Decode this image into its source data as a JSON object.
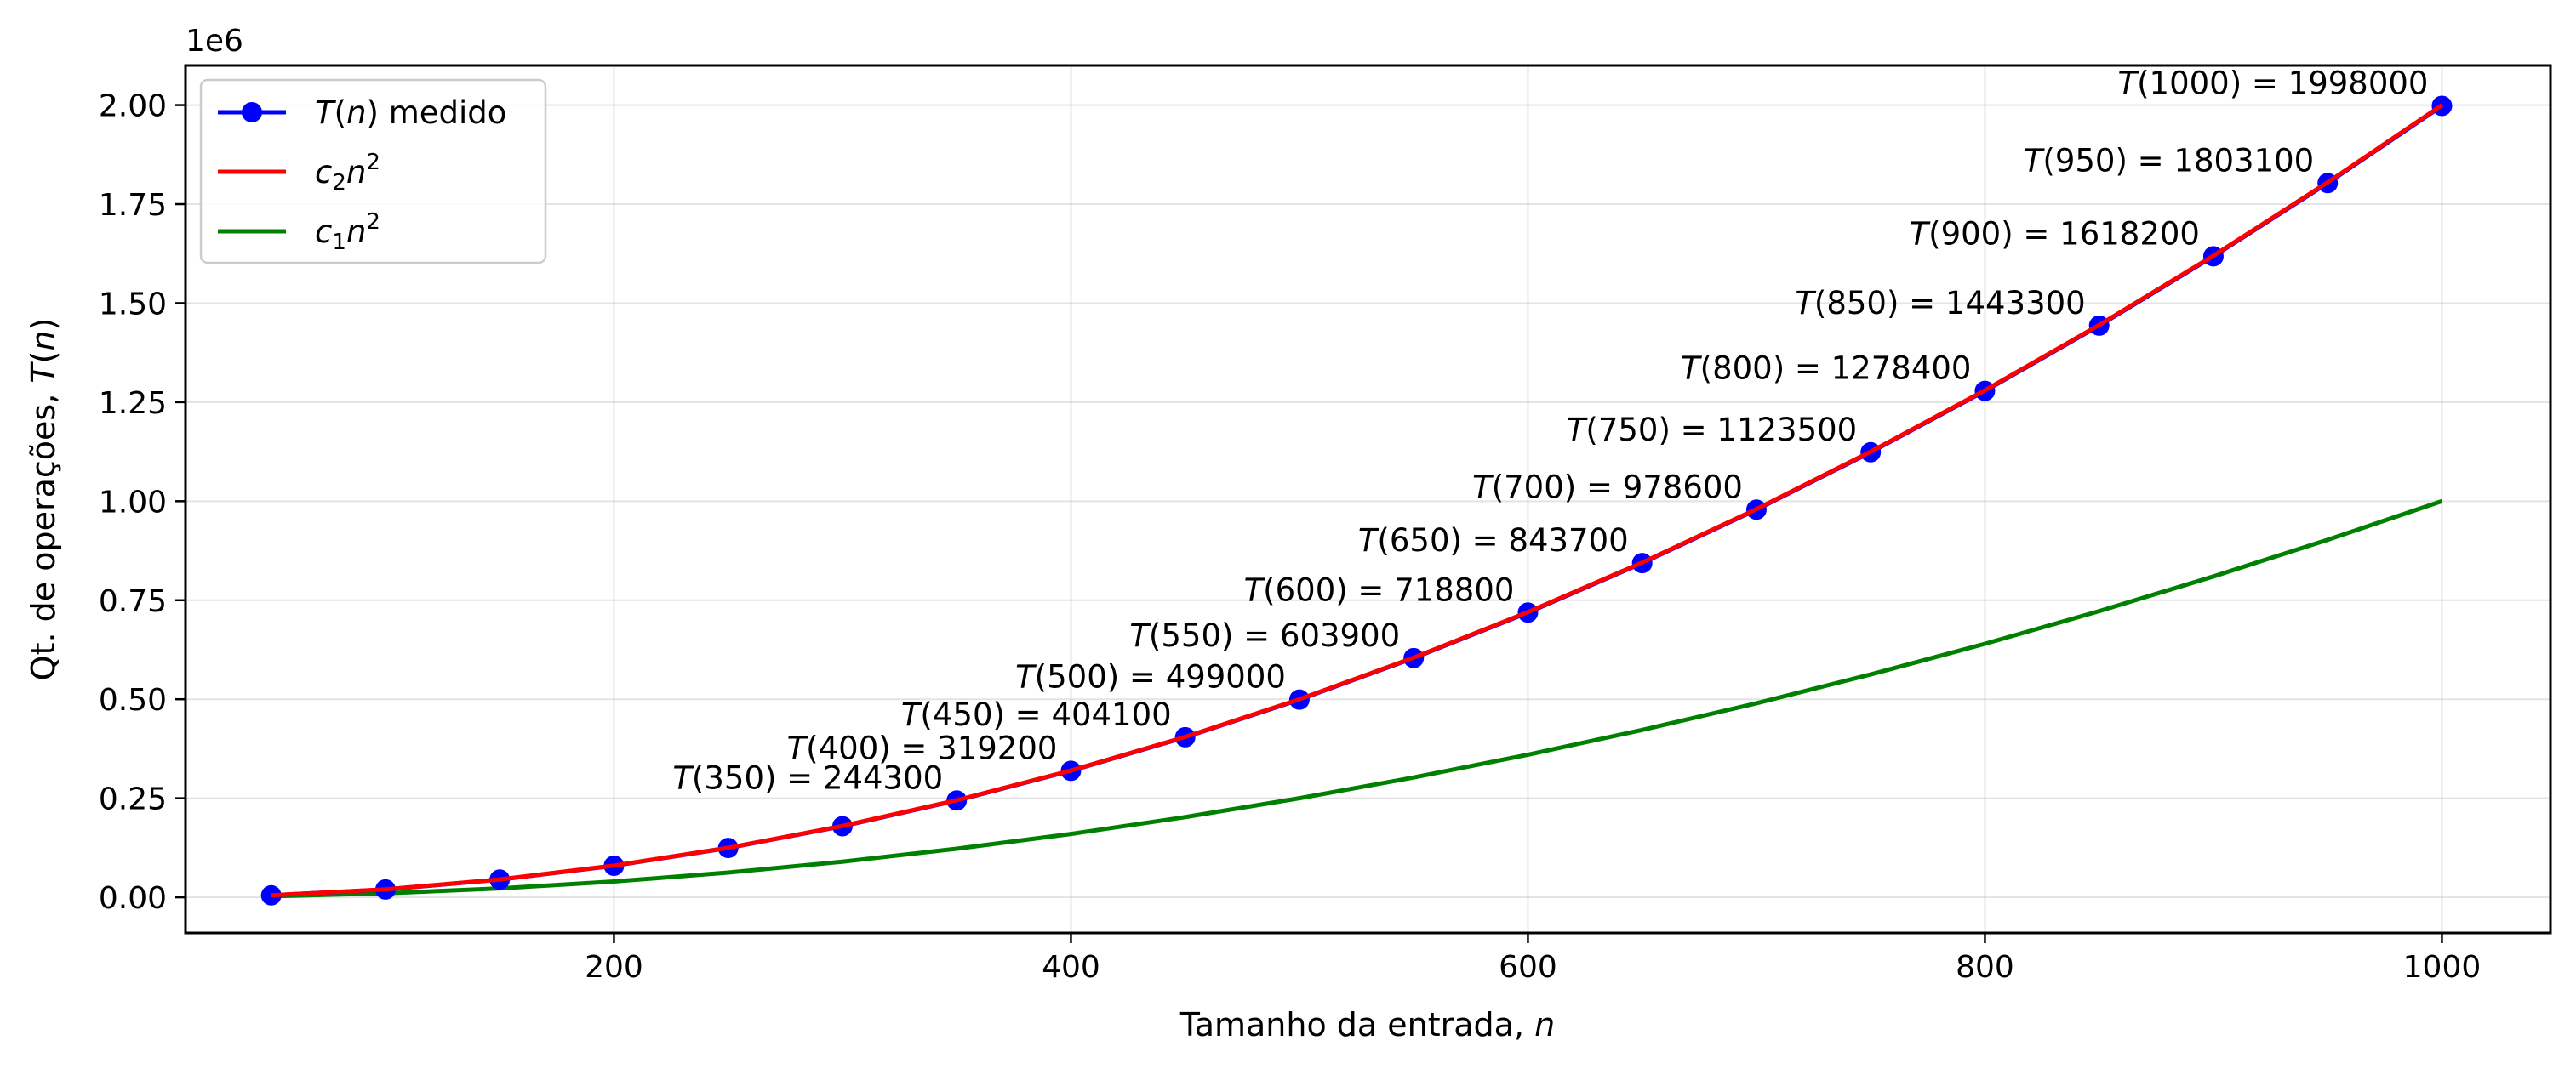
{
  "chart_data": {
    "type": "line",
    "xlabel": "Tamanho da entrada, n",
    "xlabel_parts": [
      "Tamanho da entrada, ",
      "n"
    ],
    "ylabel": "Qt. de operações, T(n)",
    "ylabel_parts": [
      "Qt. de operações, ",
      "T",
      "(",
      "n",
      ")"
    ],
    "y_offset_text": "1e6",
    "y_scale": 1000000,
    "xlim": [
      12.5,
      1047.5
    ],
    "ylim": [
      -0.09,
      2.1
    ],
    "x_ticks": [
      200,
      400,
      600,
      800,
      1000
    ],
    "x_tick_labels": [
      "200",
      "400",
      "600",
      "800",
      "1000"
    ],
    "y_ticks": [
      0,
      0.25,
      0.5,
      0.75,
      1.0,
      1.25,
      1.5,
      1.75,
      2.0
    ],
    "y_tick_labels": [
      "0.00",
      "0.25",
      "0.50",
      "0.75",
      "1.00",
      "1.25",
      "1.50",
      "1.75",
      "2.00"
    ],
    "grid": true,
    "legend_position": "top-left",
    "series": [
      {
        "name": "T(n) medido",
        "legend_parts": [
          "T",
          "(",
          "n",
          ") medido"
        ],
        "color": "#0000ff",
        "marker": "circle",
        "x": [
          50,
          100,
          150,
          200,
          250,
          300,
          350,
          400,
          450,
          500,
          550,
          600,
          650,
          700,
          750,
          800,
          850,
          900,
          950,
          1000
        ],
        "y": [
          4900,
          19800,
          44700,
          79600,
          124500,
          179400,
          244300,
          319200,
          404100,
          499000,
          603900,
          718800,
          843700,
          978600,
          1123500,
          1278400,
          1443300,
          1618200,
          1803100,
          1998000
        ]
      },
      {
        "name": "c2n2",
        "legend_parts": [
          "c",
          "2",
          "n",
          "2"
        ],
        "color": "#ff0000",
        "x": [
          50,
          100,
          150,
          200,
          250,
          300,
          350,
          400,
          450,
          500,
          550,
          600,
          650,
          700,
          750,
          800,
          850,
          900,
          950,
          1000
        ],
        "y": [
          5000,
          20000,
          45000,
          80000,
          125000,
          180000,
          245000,
          320000,
          405000,
          500000,
          605000,
          720000,
          845000,
          980000,
          1125000,
          1280000,
          1445000,
          1620000,
          1805000,
          2000000
        ]
      },
      {
        "name": "c1n2",
        "legend_parts": [
          "c",
          "1",
          "n",
          "2"
        ],
        "color": "#008000",
        "x": [
          50,
          100,
          150,
          200,
          250,
          300,
          350,
          400,
          450,
          500,
          550,
          600,
          650,
          700,
          750,
          800,
          850,
          900,
          950,
          1000
        ],
        "y": [
          2500,
          10000,
          22500,
          40000,
          62500,
          90000,
          122500,
          160000,
          202500,
          250000,
          302500,
          360000,
          422500,
          490000,
          562500,
          640000,
          722500,
          810000,
          902500,
          1000000
        ]
      }
    ],
    "annotations": [
      {
        "n": "350",
        "value": "244300",
        "x": 350,
        "y": 244300
      },
      {
        "n": "400",
        "value": "319200",
        "x": 400,
        "y": 319200
      },
      {
        "n": "450",
        "value": "404100",
        "x": 450,
        "y": 404100
      },
      {
        "n": "500",
        "value": "499000",
        "x": 500,
        "y": 499000
      },
      {
        "n": "550",
        "value": "603900",
        "x": 550,
        "y": 603900
      },
      {
        "n": "600",
        "value": "718800",
        "x": 600,
        "y": 718800
      },
      {
        "n": "650",
        "value": "843700",
        "x": 650,
        "y": 843700
      },
      {
        "n": "700",
        "value": "978600",
        "x": 700,
        "y": 978600
      },
      {
        "n": "750",
        "value": "1123500",
        "x": 750,
        "y": 1123500
      },
      {
        "n": "800",
        "value": "1278400",
        "x": 800,
        "y": 1278400
      },
      {
        "n": "850",
        "value": "1443300",
        "x": 850,
        "y": 1443300
      },
      {
        "n": "900",
        "value": "1618200",
        "x": 900,
        "y": 1618200
      },
      {
        "n": "950",
        "value": "1803100",
        "x": 950,
        "y": 1803100
      },
      {
        "n": "1000",
        "value": "1998000",
        "x": 1000,
        "y": 1998000
      }
    ]
  }
}
